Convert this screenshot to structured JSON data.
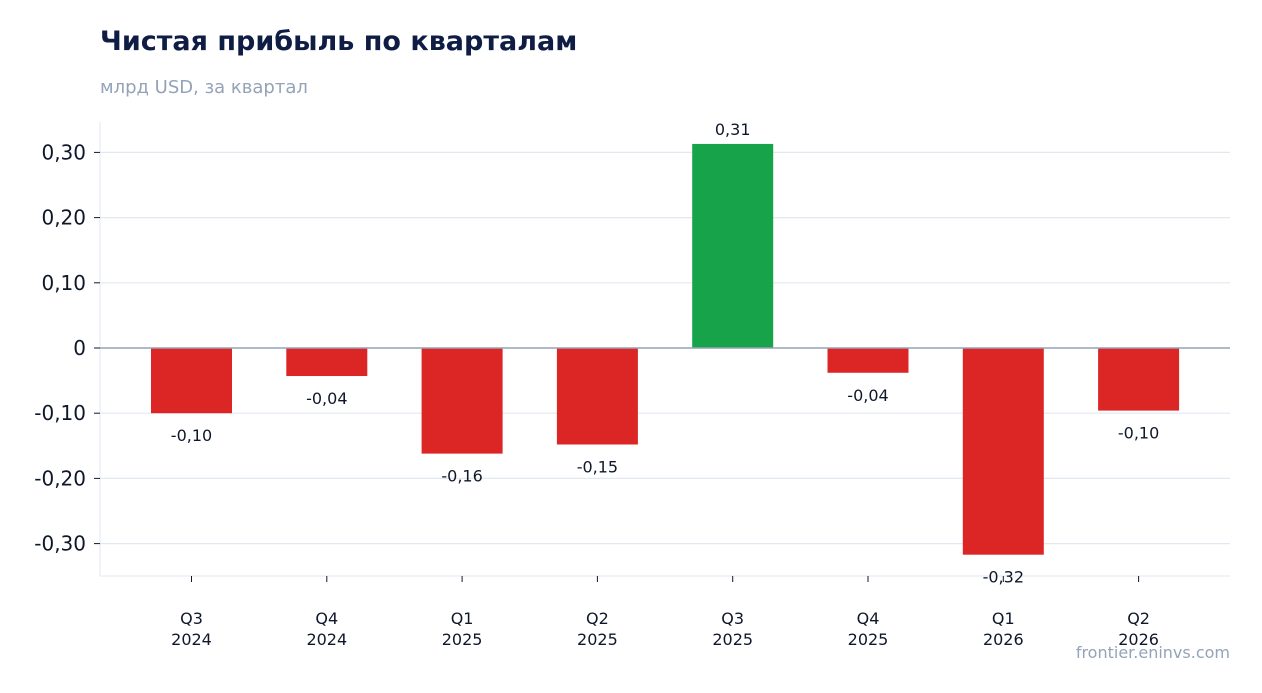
{
  "header": {
    "title": "Чистая прибыль по кварталам",
    "subtitle": "млрд USD, за квартал"
  },
  "watermark": "frontier.eninvs.com",
  "chart_data": {
    "type": "bar",
    "title": "Чистая прибыль по кварталам",
    "subtitle": "млрд USD, за квартал",
    "xlabel": "",
    "ylabel": "",
    "categories": [
      [
        "Q3",
        "2024"
      ],
      [
        "Q4",
        "2024"
      ],
      [
        "Q1",
        "2025"
      ],
      [
        "Q2",
        "2025"
      ],
      [
        "Q3",
        "2025"
      ],
      [
        "Q4",
        "2025"
      ],
      [
        "Q1",
        "2026"
      ],
      [
        "Q2",
        "2026"
      ]
    ],
    "values": [
      -0.1,
      -0.043,
      -0.162,
      -0.148,
      0.313,
      -0.038,
      -0.317,
      -0.096
    ],
    "value_labels": [
      "-0,10",
      "-0,04",
      "-0,16",
      "-0,15",
      "0,31",
      "-0,04",
      "-0,32",
      "-0,10"
    ],
    "ylim": [
      -0.35,
      0.35
    ],
    "yticks": [
      0.3,
      0.2,
      0.1,
      0,
      -0.1,
      -0.2,
      -0.3
    ],
    "ytick_labels": [
      "0,30",
      "0,20",
      "0,10",
      "0",
      "-0,10",
      "-0,20",
      "-0,30"
    ],
    "colors": {
      "positive": "#16a34a",
      "negative": "#dc2626",
      "grid": "#e2e8f0",
      "zero_line": "#94a3b8"
    },
    "grid": true,
    "legend": "none"
  }
}
